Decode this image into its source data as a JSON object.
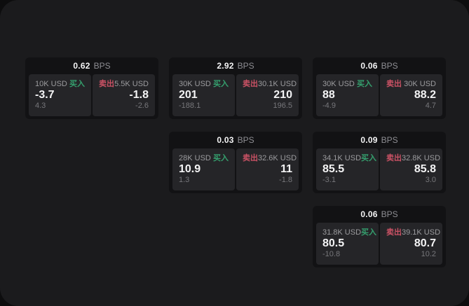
{
  "panel": {
    "bps_suffix": "BPS",
    "buy_label": "买入",
    "sell_label": "卖出"
  },
  "colors": {
    "buy_green": "#35a06e",
    "sell_red": "#cb5265",
    "panel_bg": "#1b1b1d",
    "card_bg": "#121214",
    "tile_bg": "#252528"
  },
  "cards": [
    {
      "bps": "0.62",
      "grid": {
        "row": 1,
        "col": 1
      },
      "buy": {
        "amount": "10K USD",
        "price": "-3.7",
        "delta": "4.3"
      },
      "sell": {
        "amount": "5.5K USD",
        "price": "-1.8",
        "delta": "-2.6"
      }
    },
    {
      "bps": "2.92",
      "grid": {
        "row": 1,
        "col": 2
      },
      "buy": {
        "amount": "30K USD",
        "price": "201",
        "delta": "-188.1"
      },
      "sell": {
        "amount": "30.1K USD",
        "price": "210",
        "delta": "196.5"
      }
    },
    {
      "bps": "0.06",
      "grid": {
        "row": 1,
        "col": 3
      },
      "buy": {
        "amount": "30K USD",
        "price": "88",
        "delta": "-4.9"
      },
      "sell": {
        "amount": "30K USD",
        "price": "88.2",
        "delta": "4.7"
      }
    },
    {
      "bps": "0.03",
      "grid": {
        "row": 2,
        "col": 2
      },
      "buy": {
        "amount": "28K USD",
        "price": "10.9",
        "delta": "1.3"
      },
      "sell": {
        "amount": "32.6K USD",
        "price": "11",
        "delta": "-1.8"
      }
    },
    {
      "bps": "0.09",
      "grid": {
        "row": 2,
        "col": 3
      },
      "buy": {
        "amount": "34.1K USD",
        "price": "85.5",
        "delta": "-3.1"
      },
      "sell": {
        "amount": "32.8K USD",
        "price": "85.8",
        "delta": "3.0"
      }
    },
    {
      "bps": "0.06",
      "grid": {
        "row": 3,
        "col": 3
      },
      "buy": {
        "amount": "31.8K USD",
        "price": "80.5",
        "delta": "-10.8"
      },
      "sell": {
        "amount": "39.1K USD",
        "price": "80.7",
        "delta": "10.2"
      }
    }
  ]
}
